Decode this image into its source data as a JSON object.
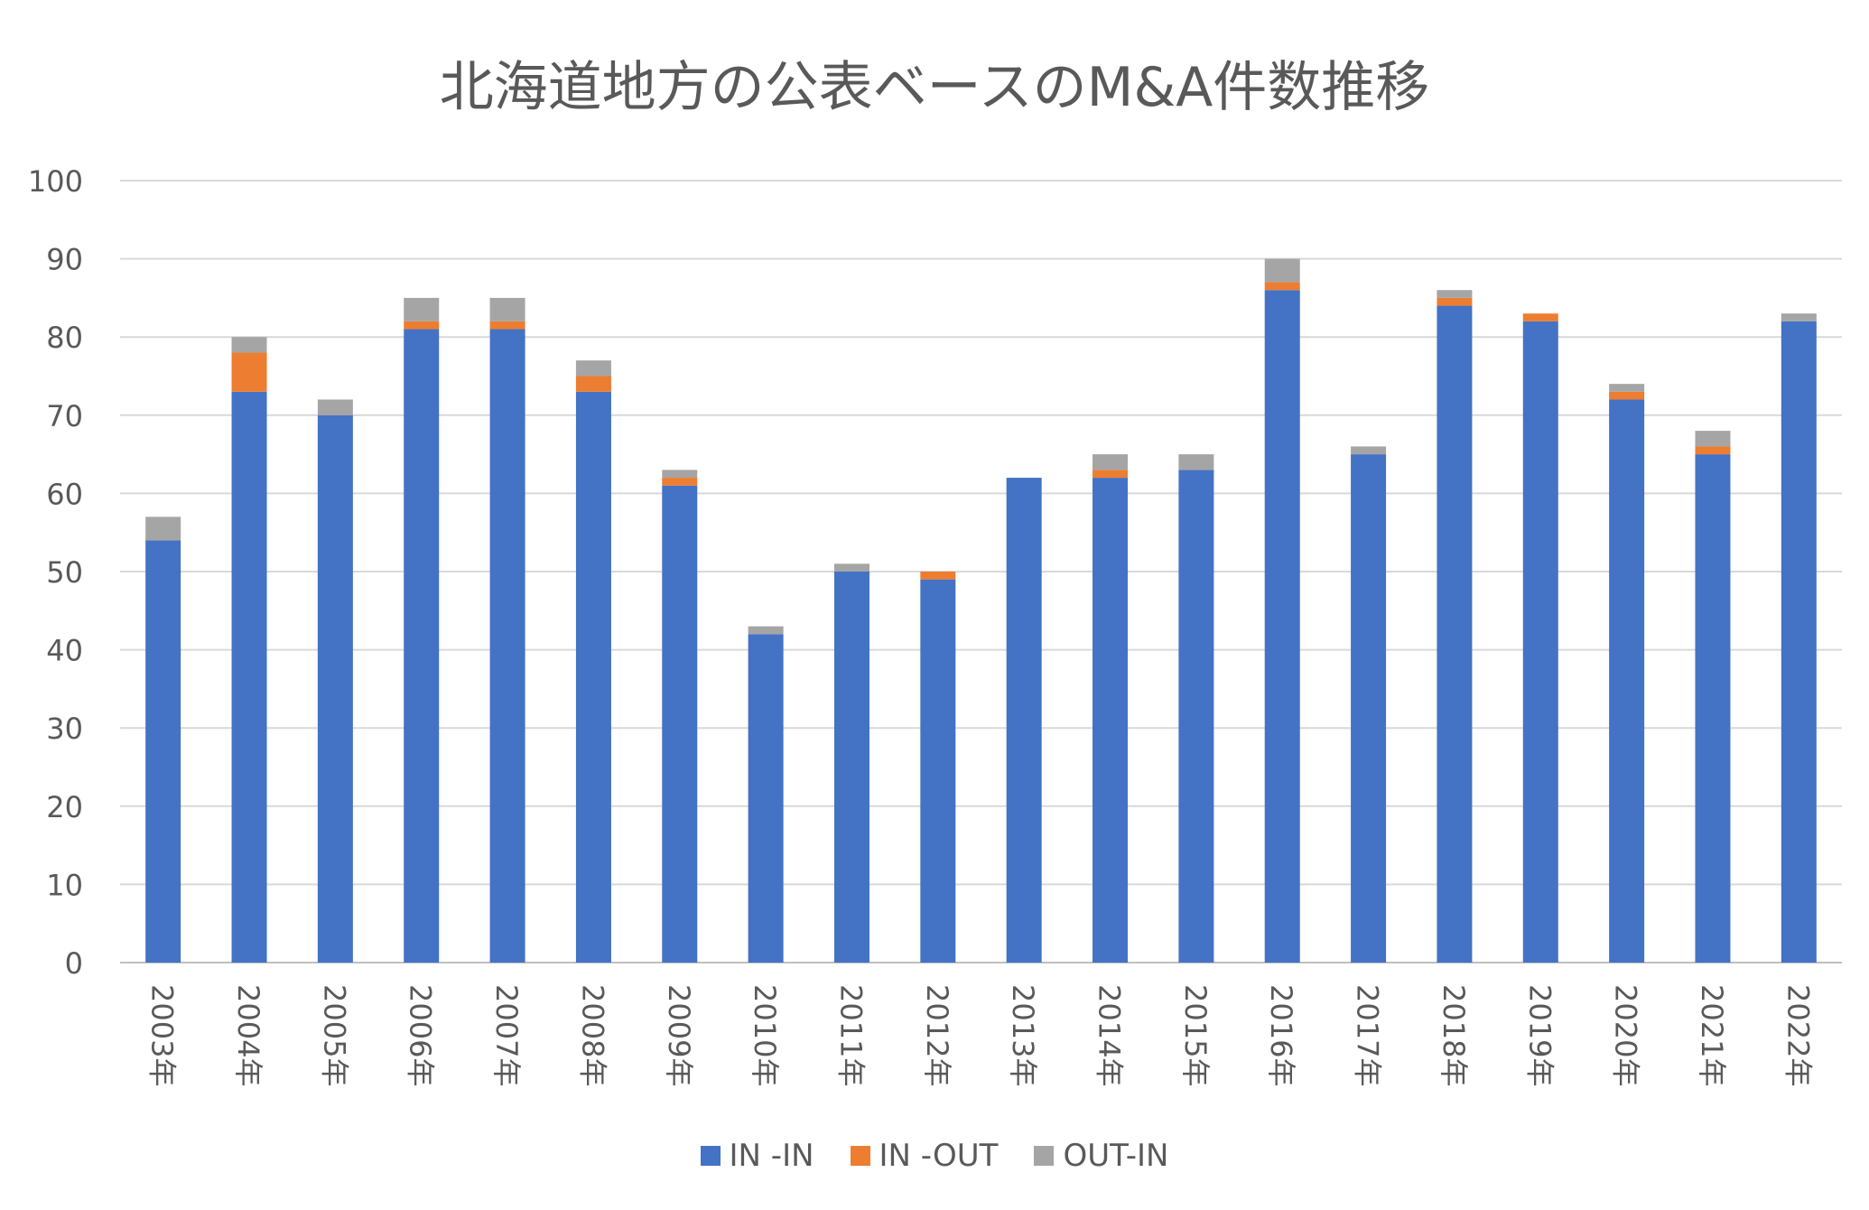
{
  "chart_data": {
    "type": "bar",
    "stacked": true,
    "title": "北海道地方の公表ベースのM&A件数推移",
    "xlabel": "",
    "ylabel": "",
    "ylim": [
      0,
      100
    ],
    "yticks": [
      "0",
      "10",
      "20",
      "30",
      "40",
      "50",
      "60",
      "70",
      "80",
      "90",
      "100"
    ],
    "grid": true,
    "legend_position": "bottom",
    "categories": [
      "2003年",
      "2004年",
      "2005年",
      "2006年",
      "2007年",
      "2008年",
      "2009年",
      "2010年",
      "2011年",
      "2012年",
      "2013年",
      "2014年",
      "2015年",
      "2016年",
      "2017年",
      "2018年",
      "2019年",
      "2020年",
      "2021年",
      "2022年"
    ],
    "series": [
      {
        "name": "IN -IN",
        "color": "#4472C4",
        "values": [
          54,
          73,
          70,
          81,
          81,
          73,
          61,
          42,
          50,
          49,
          62,
          62,
          63,
          86,
          65,
          84,
          82,
          72,
          65,
          82
        ]
      },
      {
        "name": "IN -OUT",
        "color": "#ED7D31",
        "values": [
          0,
          5,
          0,
          1,
          1,
          2,
          1,
          0,
          0,
          1,
          0,
          1,
          0,
          1,
          0,
          1,
          1,
          1,
          1,
          0
        ]
      },
      {
        "name": "OUT-IN",
        "color": "#A5A5A5",
        "values": [
          3,
          2,
          2,
          3,
          3,
          2,
          1,
          1,
          1,
          0,
          0,
          2,
          2,
          3,
          1,
          1,
          0,
          1,
          2,
          1
        ]
      }
    ]
  }
}
